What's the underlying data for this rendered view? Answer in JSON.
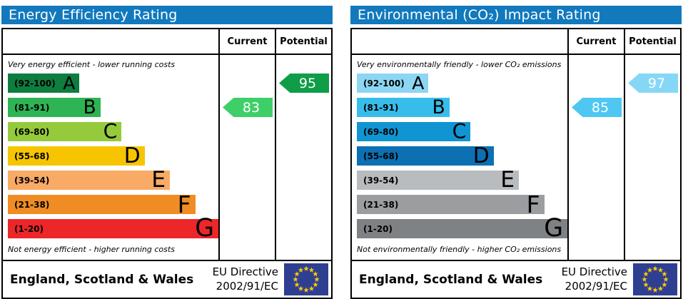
{
  "chart_data": [
    {
      "type": "bar",
      "title": "Energy Efficiency Rating",
      "subtitle_top": "Very energy efficient - lower running costs",
      "subtitle_bottom": "Not energy efficient - higher running costs",
      "categories": [
        "A (92-100)",
        "B (81-91)",
        "C (69-80)",
        "D (55-68)",
        "E (39-54)",
        "F (21-38)",
        "G (1-20)"
      ],
      "series": [
        {
          "name": "Current",
          "value": 83,
          "band": "B"
        },
        {
          "name": "Potential",
          "value": 95,
          "band": "A"
        }
      ],
      "xlim": [
        1,
        100
      ],
      "footer": "England, Scotland & Wales",
      "directive": "EU Directive 2002/91/EC"
    },
    {
      "type": "bar",
      "title": "Environmental (CO₂) Impact Rating",
      "subtitle_top": "Very environmentally friendly - lower CO₂ emissions",
      "subtitle_bottom": "Not environmentally friendly - higher CO₂ emissions",
      "categories": [
        "A (92-100)",
        "B (81-91)",
        "C (69-80)",
        "D (55-68)",
        "E (39-54)",
        "F (21-38)",
        "G (1-20)"
      ],
      "series": [
        {
          "name": "Current",
          "value": 85,
          "band": "B"
        },
        {
          "name": "Potential",
          "value": 97,
          "band": "A"
        }
      ],
      "xlim": [
        1,
        100
      ],
      "footer": "England, Scotland & Wales",
      "directive": "EU Directive 2002/91/EC"
    }
  ],
  "header_bg": "#1279bd",
  "eu_flag": {
    "bg": "#2e3f92",
    "star": "#ffcc00"
  },
  "panels": [
    {
      "title": "Energy Efficiency Rating",
      "columns": {
        "current": "Current",
        "potential": "Potential"
      },
      "top_note": "Very energy efficient - lower running costs",
      "bottom_note": "Not energy efficient - higher running costs",
      "bands": [
        {
          "range": "(92-100)",
          "letter": "A",
          "color": "#0e7d40",
          "width_pct": 34
        },
        {
          "range": "(81-91)",
          "letter": "B",
          "color": "#2eb454",
          "width_pct": 44
        },
        {
          "range": "(69-80)",
          "letter": "C",
          "color": "#95ca3c",
          "width_pct": 54
        },
        {
          "range": "(55-68)",
          "letter": "D",
          "color": "#f6c500",
          "width_pct": 65
        },
        {
          "range": "(39-54)",
          "letter": "E",
          "color": "#f9aa65",
          "width_pct": 77
        },
        {
          "range": "(21-38)",
          "letter": "F",
          "color": "#ef8d24",
          "width_pct": 89
        },
        {
          "range": "(1-20)",
          "letter": "G",
          "color": "#ec2629",
          "width_pct": 100
        }
      ],
      "current": {
        "value": "83",
        "band_index": 1,
        "color": "#3ecf68"
      },
      "potential": {
        "value": "95",
        "band_index": 0,
        "color": "#0f9d48"
      },
      "footer": {
        "region": "England, Scotland & Wales",
        "directive_line1": "EU Directive",
        "directive_line2": "2002/91/EC"
      }
    },
    {
      "title": "Environmental (CO₂) Impact Rating",
      "columns": {
        "current": "Current",
        "potential": "Potential"
      },
      "top_note": "Very environmentally friendly - lower CO₂ emissions",
      "bottom_note": "Not environmentally friendly - higher CO₂ emissions",
      "bands": [
        {
          "range": "(92-100)",
          "letter": "A",
          "color": "#8cd6f3",
          "width_pct": 34
        },
        {
          "range": "(81-91)",
          "letter": "B",
          "color": "#38bdea",
          "width_pct": 44
        },
        {
          "range": "(69-80)",
          "letter": "C",
          "color": "#1095d2",
          "width_pct": 54
        },
        {
          "range": "(55-68)",
          "letter": "D",
          "color": "#0c70b3",
          "width_pct": 65
        },
        {
          "range": "(39-54)",
          "letter": "E",
          "color": "#b9bcbe",
          "width_pct": 77
        },
        {
          "range": "(21-38)",
          "letter": "F",
          "color": "#9a9ea1",
          "width_pct": 89
        },
        {
          "range": "(1-20)",
          "letter": "G",
          "color": "#7e8285",
          "width_pct": 100
        }
      ],
      "current": {
        "value": "85",
        "band_index": 1,
        "color": "#4ec7f2"
      },
      "potential": {
        "value": "97",
        "band_index": 0,
        "color": "#86d7f6"
      },
      "footer": {
        "region": "England, Scotland & Wales",
        "directive_line1": "EU Directive",
        "directive_line2": "2002/91/EC"
      }
    }
  ]
}
